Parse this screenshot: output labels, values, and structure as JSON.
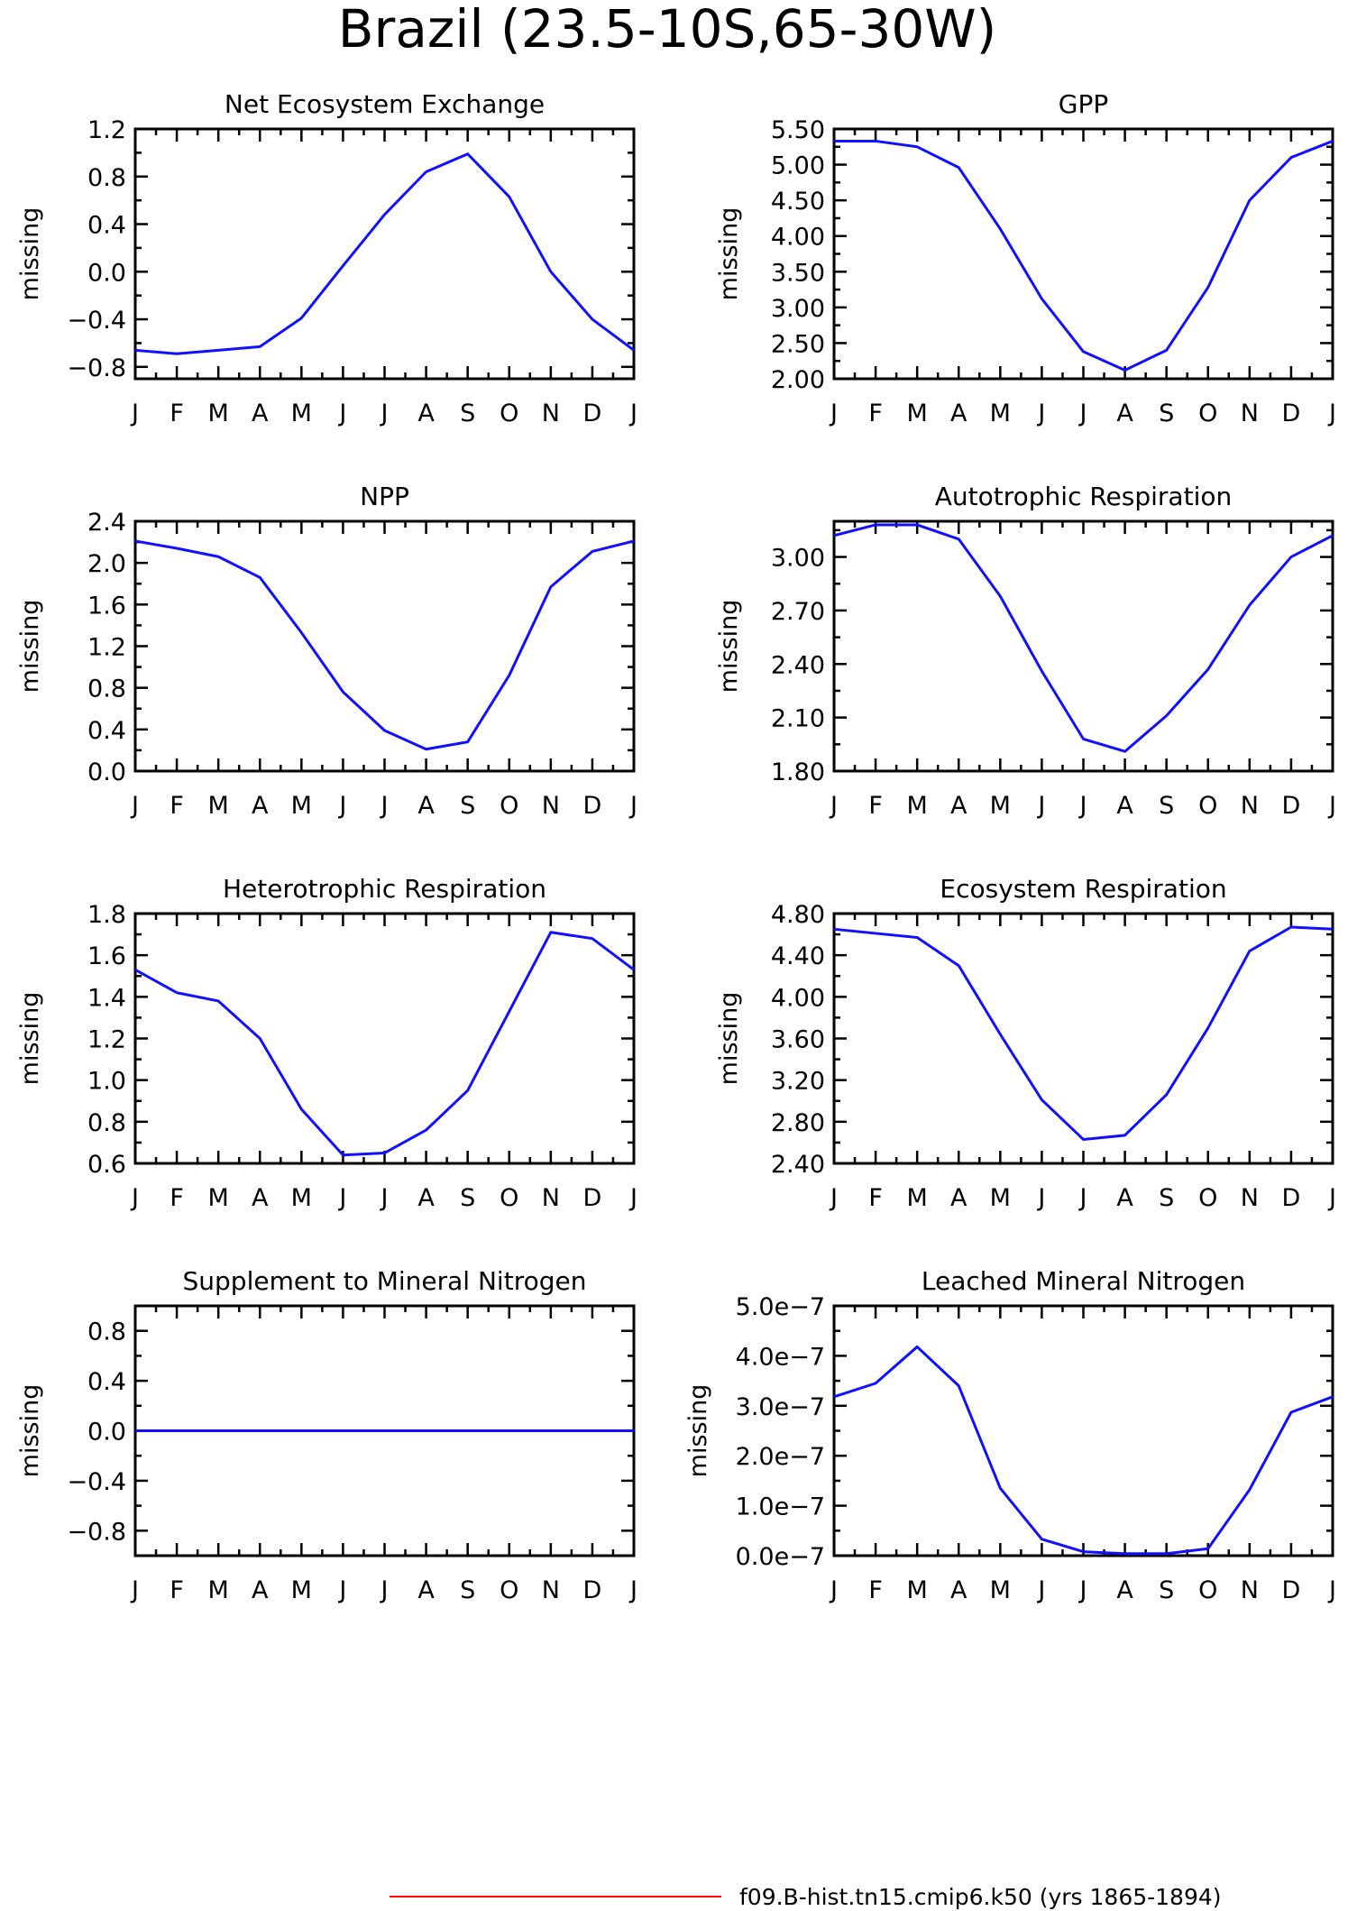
{
  "figure": {
    "title": "Brazil (23.5-10S,65-30W)",
    "line_color": "#1010ff",
    "legend": {
      "label": "f09.B-hist.tn15.cmip6.k50 (yrs 1865-1894)",
      "color": "#ff0000"
    }
  },
  "chart_data": [
    {
      "type": "line",
      "title": "Net Ecosystem Exchange",
      "ylabel": "missing",
      "x": [
        "J",
        "F",
        "M",
        "A",
        "M",
        "J",
        "J",
        "A",
        "S",
        "O",
        "N",
        "D",
        "J"
      ],
      "ylim": [
        -0.9,
        1.2
      ],
      "yticks": [
        -0.8,
        -0.4,
        0.0,
        0.4,
        0.8,
        1.2
      ],
      "yticklabels": [
        "−0.8",
        "−0.4",
        "0.0",
        "0.4",
        "0.8",
        "1.2"
      ],
      "series": [
        {
          "values": [
            -0.66,
            -0.69,
            -0.66,
            -0.63,
            -0.39,
            0.05,
            0.48,
            0.84,
            0.99,
            0.63,
            0.0,
            -0.4,
            -0.66
          ]
        }
      ]
    },
    {
      "type": "line",
      "title": "GPP",
      "ylabel": "missing",
      "x": [
        "J",
        "F",
        "M",
        "A",
        "M",
        "J",
        "J",
        "A",
        "S",
        "O",
        "N",
        "D",
        "J"
      ],
      "ylim": [
        2.0,
        5.5
      ],
      "yticks": [
        2.0,
        2.5,
        3.0,
        3.5,
        4.0,
        4.5,
        5.0,
        5.5
      ],
      "yticklabels": [
        "2.00",
        "2.50",
        "3.00",
        "3.50",
        "4.00",
        "4.50",
        "5.00",
        "5.50"
      ],
      "series": [
        {
          "values": [
            5.33,
            5.33,
            5.25,
            4.96,
            4.1,
            3.12,
            2.38,
            2.12,
            2.4,
            3.28,
            4.5,
            5.1,
            5.33
          ]
        }
      ]
    },
    {
      "type": "line",
      "title": "NPP",
      "ylabel": "missing",
      "x": [
        "J",
        "F",
        "M",
        "A",
        "M",
        "J",
        "J",
        "A",
        "S",
        "O",
        "N",
        "D",
        "J"
      ],
      "ylim": [
        0.0,
        2.4
      ],
      "yticks": [
        0.0,
        0.4,
        0.8,
        1.2,
        1.6,
        2.0,
        2.4
      ],
      "yticklabels": [
        "0.0",
        "0.4",
        "0.8",
        "1.2",
        "1.6",
        "2.0",
        "2.4"
      ],
      "series": [
        {
          "values": [
            2.21,
            2.14,
            2.06,
            1.86,
            1.33,
            0.76,
            0.39,
            0.21,
            0.28,
            0.92,
            1.77,
            2.11,
            2.21
          ]
        }
      ]
    },
    {
      "type": "line",
      "title": "Autotrophic Respiration",
      "ylabel": "missing",
      "x": [
        "J",
        "F",
        "M",
        "A",
        "M",
        "J",
        "J",
        "A",
        "S",
        "O",
        "N",
        "D",
        "J"
      ],
      "ylim": [
        1.8,
        3.2
      ],
      "yticks": [
        1.8,
        2.1,
        2.4,
        2.7,
        3.0
      ],
      "yticklabels": [
        "1.80",
        "2.10",
        "2.40",
        "2.70",
        "3.00"
      ],
      "series": [
        {
          "values": [
            3.12,
            3.18,
            3.18,
            3.1,
            2.78,
            2.36,
            1.98,
            1.91,
            2.11,
            2.37,
            2.73,
            3.0,
            3.12
          ]
        }
      ]
    },
    {
      "type": "line",
      "title": "Heterotrophic Respiration",
      "ylabel": "missing",
      "x": [
        "J",
        "F",
        "M",
        "A",
        "M",
        "J",
        "J",
        "A",
        "S",
        "O",
        "N",
        "D",
        "J"
      ],
      "ylim": [
        0.6,
        1.8
      ],
      "yticks": [
        0.6,
        0.8,
        1.0,
        1.2,
        1.4,
        1.6,
        1.8
      ],
      "yticklabels": [
        "0.6",
        "0.8",
        "1.0",
        "1.2",
        "1.4",
        "1.6",
        "1.8"
      ],
      "series": [
        {
          "values": [
            1.53,
            1.42,
            1.38,
            1.2,
            0.86,
            0.64,
            0.65,
            0.76,
            0.95,
            1.33,
            1.71,
            1.68,
            1.53
          ]
        }
      ]
    },
    {
      "type": "line",
      "title": "Ecosystem Respiration",
      "ylabel": "missing",
      "x": [
        "J",
        "F",
        "M",
        "A",
        "M",
        "J",
        "J",
        "A",
        "S",
        "O",
        "N",
        "D",
        "J"
      ],
      "ylim": [
        2.4,
        4.8
      ],
      "yticks": [
        2.4,
        2.8,
        3.2,
        3.6,
        4.0,
        4.4,
        4.8
      ],
      "yticklabels": [
        "2.40",
        "2.80",
        "3.20",
        "3.60",
        "4.00",
        "4.40",
        "4.80"
      ],
      "series": [
        {
          "values": [
            4.65,
            4.61,
            4.57,
            4.3,
            3.64,
            3.01,
            2.63,
            2.67,
            3.06,
            3.7,
            4.44,
            4.67,
            4.65
          ]
        }
      ]
    },
    {
      "type": "line",
      "title": "Supplement to Mineral Nitrogen",
      "ylabel": "missing",
      "x": [
        "J",
        "F",
        "M",
        "A",
        "M",
        "J",
        "J",
        "A",
        "S",
        "O",
        "N",
        "D",
        "J"
      ],
      "ylim": [
        -1.0,
        1.0
      ],
      "yticks": [
        -0.8,
        -0.4,
        0.0,
        0.4,
        0.8
      ],
      "yticklabels": [
        "−0.8",
        "−0.4",
        "0.0",
        "0.4",
        "0.8"
      ],
      "series": [
        {
          "values": [
            0,
            0,
            0,
            0,
            0,
            0,
            0,
            0,
            0,
            0,
            0,
            0,
            0
          ]
        }
      ]
    },
    {
      "type": "line",
      "title": "Leached Mineral Nitrogen",
      "ylabel": "missing",
      "x": [
        "J",
        "F",
        "M",
        "A",
        "M",
        "J",
        "J",
        "A",
        "S",
        "O",
        "N",
        "D",
        "J"
      ],
      "ylim": [
        0.0,
        5e-07
      ],
      "yticks": [
        0.0,
        1e-07,
        2e-07,
        3e-07,
        4e-07,
        5e-07
      ],
      "yticklabels": [
        "0.0e−7",
        "1.0e−7",
        "2.0e−7",
        "3.0e−7",
        "4.0e−7",
        "5.0e−7"
      ],
      "series": [
        {
          "values": [
            3.18e-07,
            3.45e-07,
            4.18e-07,
            3.4e-07,
            1.35e-07,
            3.3e-08,
            8e-09,
            4e-09,
            4e-09,
            1.4e-08,
            1.32e-07,
            2.87e-07,
            3.18e-07
          ]
        }
      ]
    }
  ]
}
